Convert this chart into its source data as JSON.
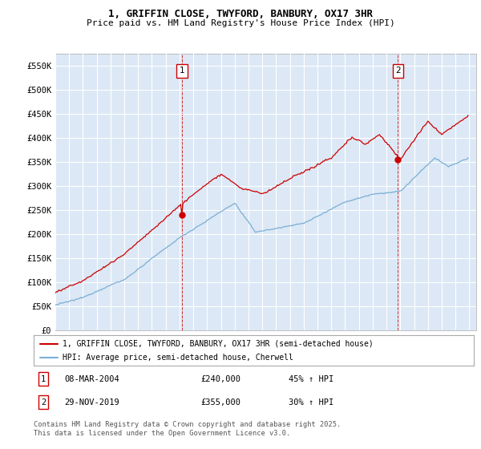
{
  "title_line1": "1, GRIFFIN CLOSE, TWYFORD, BANBURY, OX17 3HR",
  "title_line2": "Price paid vs. HM Land Registry's House Price Index (HPI)",
  "ylim": [
    0,
    575000
  ],
  "yticks": [
    0,
    50000,
    100000,
    150000,
    200000,
    250000,
    300000,
    350000,
    400000,
    450000,
    500000,
    550000
  ],
  "ytick_labels": [
    "£0",
    "£50K",
    "£100K",
    "£150K",
    "£200K",
    "£250K",
    "£300K",
    "£350K",
    "£400K",
    "£450K",
    "£500K",
    "£550K"
  ],
  "property_color": "#cc0000",
  "hpi_color": "#7bafd4",
  "hpi_fill_color": "#dce8f5",
  "legend_property": "1, GRIFFIN CLOSE, TWYFORD, BANBURY, OX17 3HR (semi-detached house)",
  "legend_hpi": "HPI: Average price, semi-detached house, Cherwell",
  "sale1_date": "08-MAR-2004",
  "sale1_price": "£240,000",
  "sale1_hpi": "45% ↑ HPI",
  "sale2_date": "29-NOV-2019",
  "sale2_price": "£355,000",
  "sale2_hpi": "30% ↑ HPI",
  "footer": "Contains HM Land Registry data © Crown copyright and database right 2025.\nThis data is licensed under the Open Government Licence v3.0.",
  "background_color": "#dce8f5",
  "grid_color": "#ffffff"
}
